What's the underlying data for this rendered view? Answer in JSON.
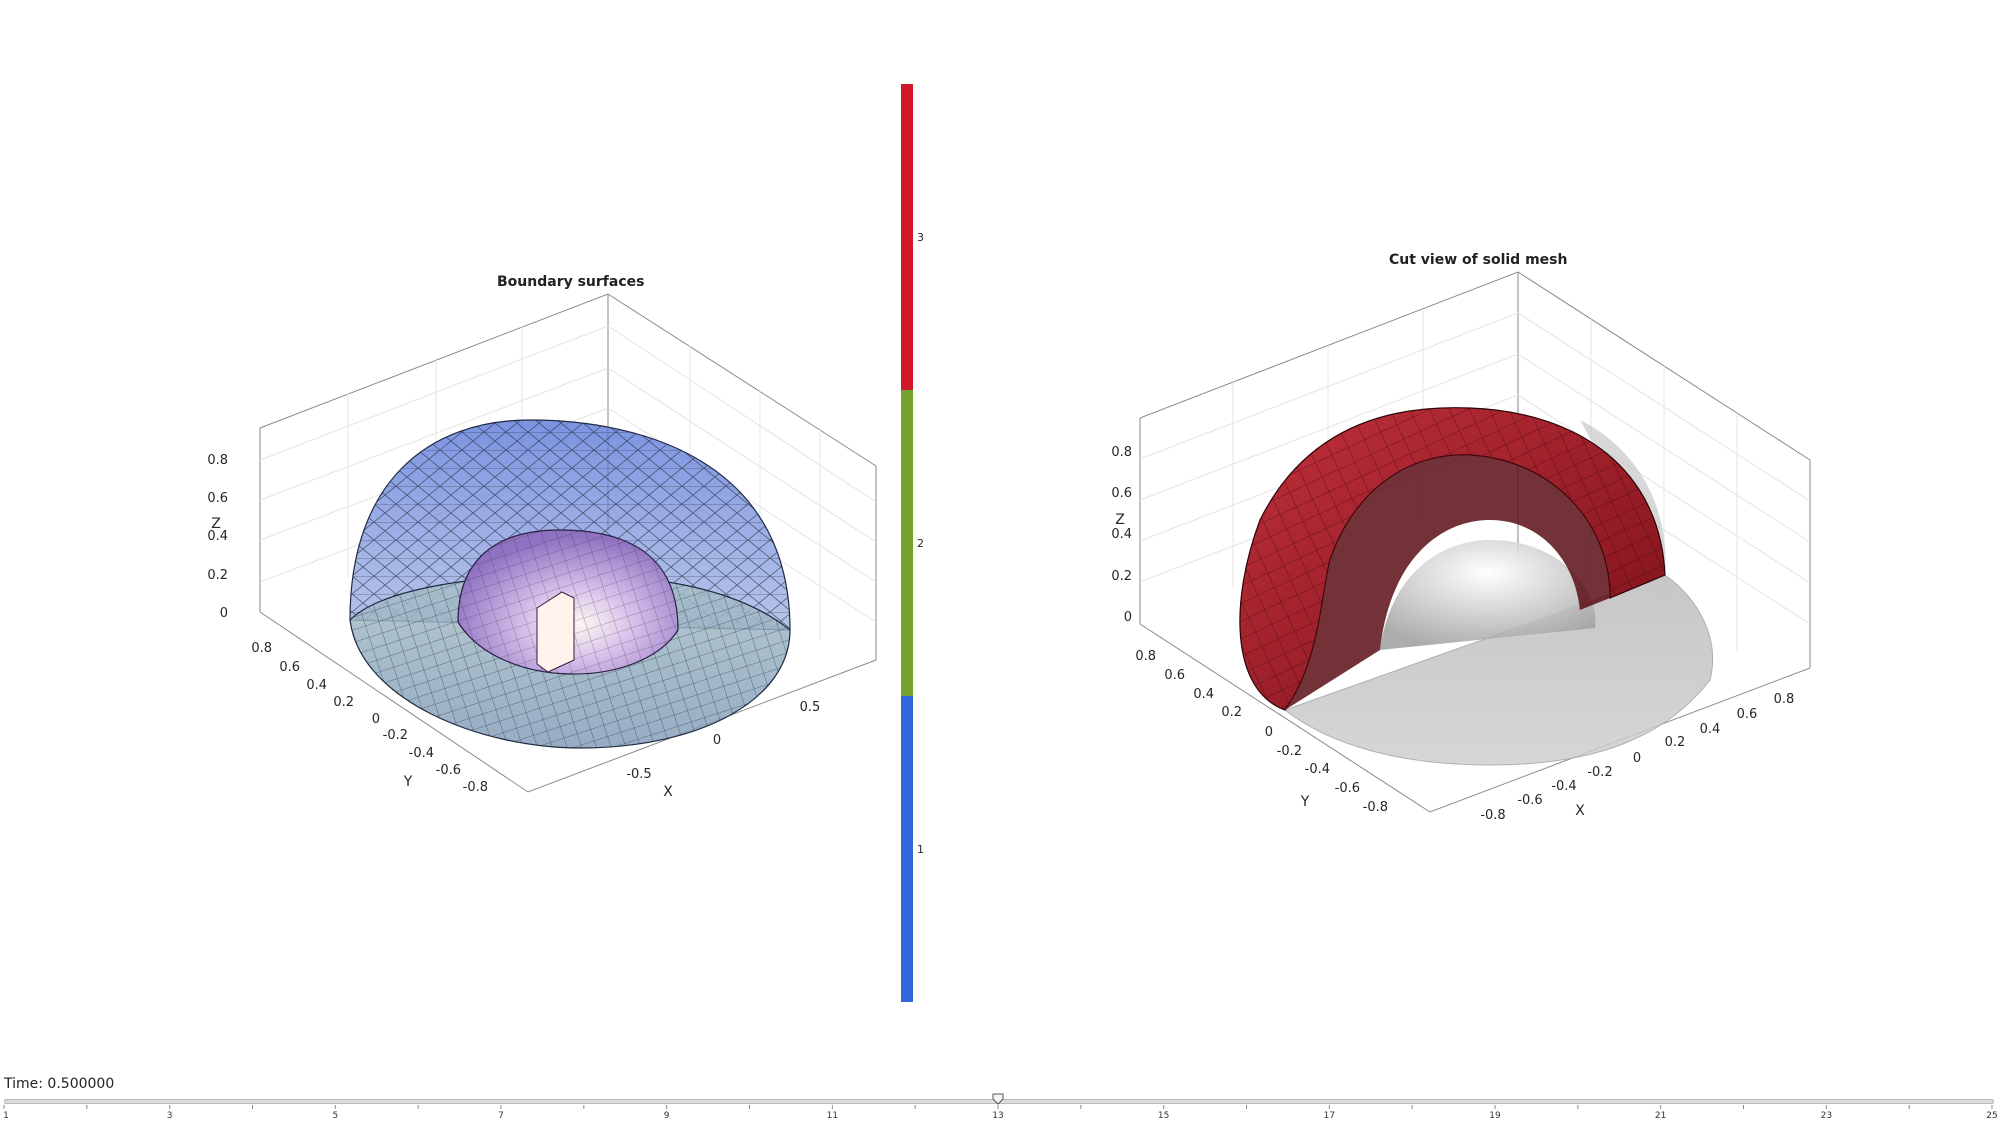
{
  "left_plot": {
    "title": "Boundary surfaces",
    "xlabel": "X",
    "ylabel": "Y",
    "zlabel": "Z",
    "z_ticks": [
      "0",
      "0.2",
      "0.4",
      "0.6",
      "0.8"
    ],
    "y_ticks": [
      "0.8",
      "0.6",
      "0.4",
      "0.2",
      "0",
      "-0.2",
      "-0.4",
      "-0.6",
      "-0.8"
    ],
    "x_ticks": [
      "-0.5",
      "0",
      "0.5"
    ]
  },
  "right_plot": {
    "title": "Cut view of solid mesh",
    "xlabel": "X",
    "ylabel": "Y",
    "zlabel": "Z",
    "z_ticks": [
      "0",
      "0.2",
      "0.4",
      "0.6",
      "0.8"
    ],
    "y_ticks": [
      "0.8",
      "0.6",
      "0.4",
      "0.2",
      "0",
      "-0.2",
      "-0.4",
      "-0.6",
      "-0.8"
    ],
    "x_ticks": [
      "-0.8",
      "-0.6",
      "-0.4",
      "-0.2",
      "0",
      "0.2",
      "0.4",
      "0.6",
      "0.8"
    ]
  },
  "colorbar": {
    "labels": [
      "3",
      "2",
      "1"
    ],
    "colors": [
      "#d0182a",
      "#77a22a",
      "#3366dd"
    ]
  },
  "animation": {
    "time_label": "Time: 0.500000",
    "slider_position": 13,
    "slider_min": 1,
    "slider_max": 25,
    "tick_labels": [
      "1",
      "3",
      "5",
      "7",
      "9",
      "11",
      "13",
      "15",
      "17",
      "19",
      "21",
      "23",
      "25"
    ]
  }
}
